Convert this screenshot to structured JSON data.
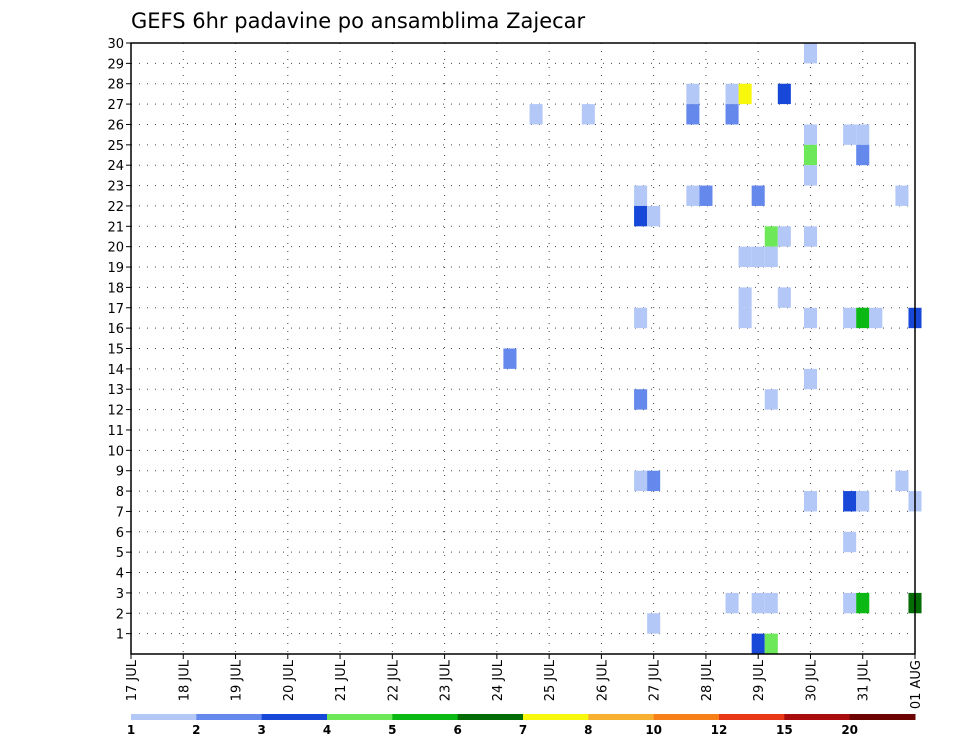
{
  "chart_data": {
    "type": "heatmap",
    "title": "GEFS 6hr padavine po ansamblima Zajecar",
    "x_ticks": [
      "17 JUL",
      "18 JUL",
      "19 JUL",
      "20 JUL",
      "21 JUL",
      "22 JUL",
      "23 JUL",
      "24 JUL",
      "25 JUL",
      "26 JUL",
      "27 JUL",
      "28 JUL",
      "29 JUL",
      "30 JUL",
      "31 JUL",
      "01 AUG"
    ],
    "x_range_days": [
      0,
      15
    ],
    "y_ticks": [
      1,
      2,
      3,
      4,
      5,
      6,
      7,
      8,
      9,
      10,
      11,
      12,
      13,
      14,
      15,
      16,
      17,
      18,
      19,
      20,
      21,
      22,
      23,
      24,
      25,
      26,
      27,
      28,
      29,
      30
    ],
    "y_range": [
      0,
      30
    ],
    "grid": true,
    "colorbar": {
      "colors": [
        "#b4c8f8",
        "#6488ec",
        "#1848d8",
        "#6ce858",
        "#0cb814",
        "#046c04",
        "#f8f80c",
        "#f8b030",
        "#f88018",
        "#e83818",
        "#a80c0c",
        "#6c0404"
      ],
      "labels": [
        "1",
        "2",
        "3",
        "4",
        "5",
        "6",
        "7",
        "8",
        "10",
        "12",
        "15",
        "20"
      ]
    },
    "cells": [
      {
        "day": 13.0,
        "member": 29,
        "level": 1
      },
      {
        "day": 10.75,
        "member": 27,
        "level": 1
      },
      {
        "day": 11.5,
        "member": 27,
        "level": 1
      },
      {
        "day": 11.75,
        "member": 27,
        "level": 7
      },
      {
        "day": 12.5,
        "member": 27,
        "level": 3
      },
      {
        "day": 7.75,
        "member": 26,
        "level": 1
      },
      {
        "day": 8.75,
        "member": 26,
        "level": 1
      },
      {
        "day": 10.75,
        "member": 26,
        "level": 2
      },
      {
        "day": 11.5,
        "member": 26,
        "level": 2
      },
      {
        "day": 13.0,
        "member": 25,
        "level": 1
      },
      {
        "day": 13.75,
        "member": 25,
        "level": 1
      },
      {
        "day": 14.0,
        "member": 25,
        "level": 1
      },
      {
        "day": 13.0,
        "member": 24,
        "level": 4
      },
      {
        "day": 14.0,
        "member": 24,
        "level": 2
      },
      {
        "day": 13.0,
        "member": 23,
        "level": 1
      },
      {
        "day": 9.75,
        "member": 22,
        "level": 1
      },
      {
        "day": 10.75,
        "member": 22,
        "level": 1
      },
      {
        "day": 11.0,
        "member": 22,
        "level": 2
      },
      {
        "day": 12.0,
        "member": 22,
        "level": 2
      },
      {
        "day": 14.75,
        "member": 22,
        "level": 1
      },
      {
        "day": 9.75,
        "member": 21,
        "level": 3
      },
      {
        "day": 10.0,
        "member": 21,
        "level": 1
      },
      {
        "day": 12.25,
        "member": 20,
        "level": 4
      },
      {
        "day": 12.5,
        "member": 20,
        "level": 1
      },
      {
        "day": 13.0,
        "member": 20,
        "level": 1
      },
      {
        "day": 11.75,
        "member": 19,
        "level": 1
      },
      {
        "day": 12.0,
        "member": 19,
        "level": 1
      },
      {
        "day": 12.25,
        "member": 19,
        "level": 1
      },
      {
        "day": 11.75,
        "member": 17,
        "level": 1
      },
      {
        "day": 12.5,
        "member": 17,
        "level": 1
      },
      {
        "day": 9.75,
        "member": 16,
        "level": 1
      },
      {
        "day": 11.75,
        "member": 16,
        "level": 1
      },
      {
        "day": 13.0,
        "member": 16,
        "level": 1
      },
      {
        "day": 13.75,
        "member": 16,
        "level": 1
      },
      {
        "day": 14.0,
        "member": 16,
        "level": 5
      },
      {
        "day": 14.25,
        "member": 16,
        "level": 1
      },
      {
        "day": 15.0,
        "member": 16,
        "level": 3
      },
      {
        "day": 7.25,
        "member": 14,
        "level": 2
      },
      {
        "day": 13.0,
        "member": 13,
        "level": 1
      },
      {
        "day": 9.75,
        "member": 12,
        "level": 2
      },
      {
        "day": 12.25,
        "member": 12,
        "level": 1
      },
      {
        "day": 9.75,
        "member": 8,
        "level": 1
      },
      {
        "day": 10.0,
        "member": 8,
        "level": 2
      },
      {
        "day": 14.75,
        "member": 8,
        "level": 1
      },
      {
        "day": 13.0,
        "member": 7,
        "level": 1
      },
      {
        "day": 13.75,
        "member": 7,
        "level": 3
      },
      {
        "day": 14.0,
        "member": 7,
        "level": 1
      },
      {
        "day": 15.0,
        "member": 7,
        "level": 1
      },
      {
        "day": 13.75,
        "member": 5,
        "level": 1
      },
      {
        "day": 11.5,
        "member": 2,
        "level": 1
      },
      {
        "day": 12.0,
        "member": 2,
        "level": 1
      },
      {
        "day": 12.25,
        "member": 2,
        "level": 1
      },
      {
        "day": 13.75,
        "member": 2,
        "level": 1
      },
      {
        "day": 14.0,
        "member": 2,
        "level": 5
      },
      {
        "day": 15.0,
        "member": 2,
        "level": 6
      },
      {
        "day": 10.0,
        "member": 1,
        "level": 1
      },
      {
        "day": 12.0,
        "member": 0,
        "level": 3
      },
      {
        "day": 12.25,
        "member": 0,
        "level": 4
      }
    ]
  }
}
